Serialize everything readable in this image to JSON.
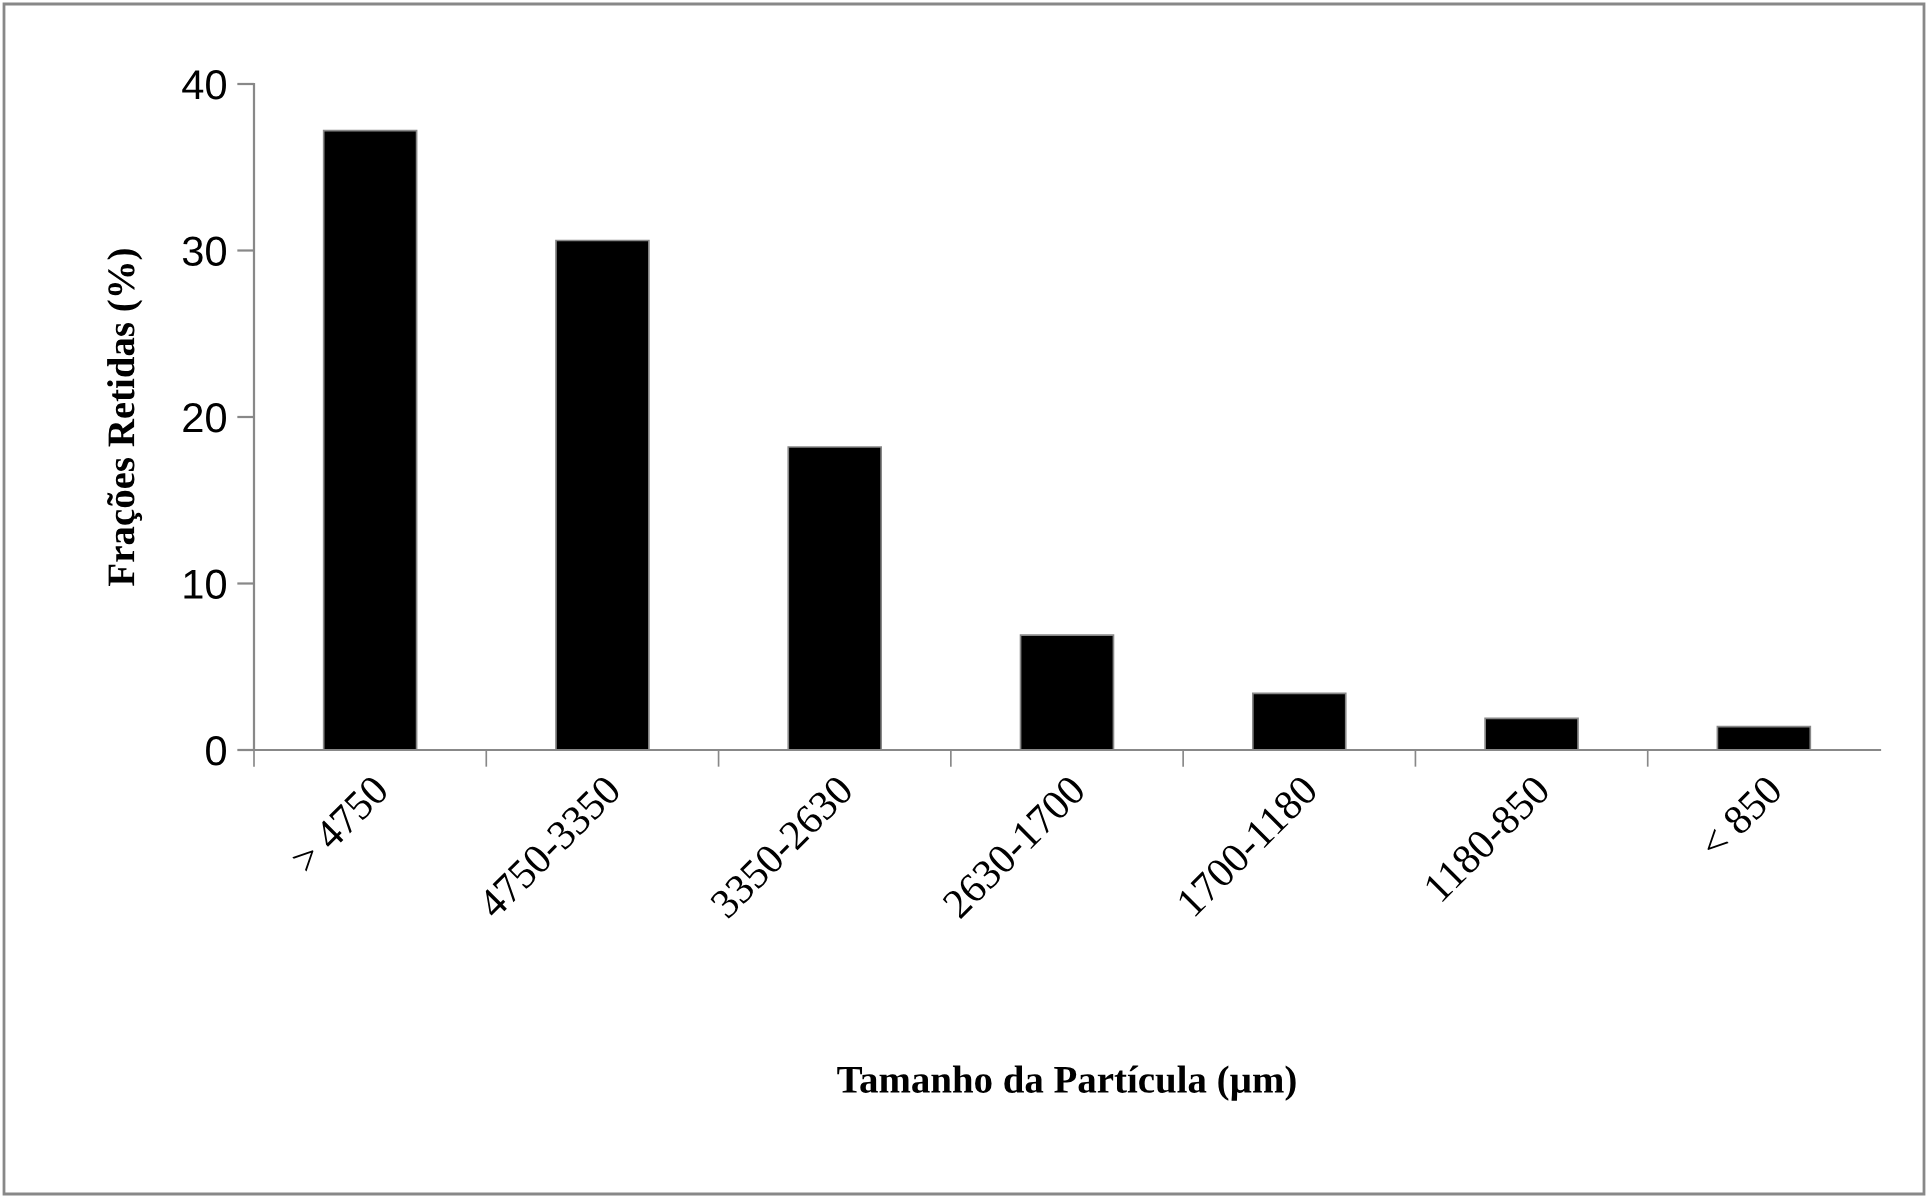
{
  "chart_data": {
    "type": "bar",
    "xlabel": "Tamanho da Partícula (µm)",
    "ylabel": "Frações Retidas (%)",
    "categories": [
      "> 4750",
      "4750-3350",
      "3350-2630",
      "2630-1700",
      "1700-1180",
      "1180-850",
      "< 850"
    ],
    "values": [
      37.2,
      30.6,
      18.2,
      6.9,
      3.4,
      1.9,
      1.4
    ],
    "color": "#000000",
    "ylim": [
      0,
      40
    ],
    "yticks": [
      0,
      10,
      20,
      30,
      40
    ],
    "grid": false,
    "legend": false
  }
}
